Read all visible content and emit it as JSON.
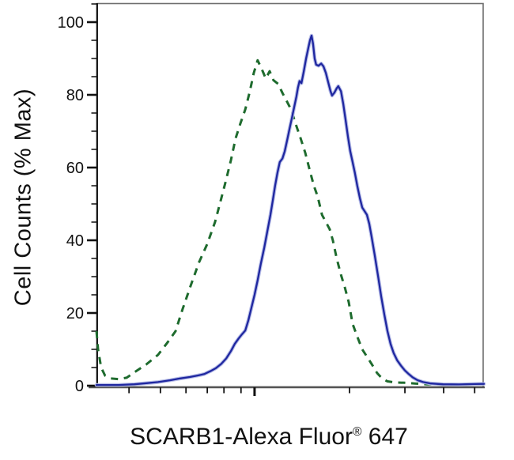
{
  "figure": {
    "background_color": "#ffffff",
    "ylabel": "Cell Counts (% Max)",
    "xlabel_main": "SCARB1-Alexa Fluor",
    "xlabel_reg": "®",
    "xlabel_suffix": " 647"
  },
  "chart_data": {
    "type": "line",
    "subtype": "flow-cytometry-histogram-overlay",
    "title": "",
    "xlabel": "SCARB1-Alexa Fluor® 647",
    "ylabel": "Cell Counts (% Max)",
    "ylim": [
      0,
      100
    ],
    "y_major_ticks": [
      0,
      20,
      40,
      60,
      80,
      100
    ],
    "y_minor_tick_step": 5,
    "grid": false,
    "legend": "none",
    "x_axis": {
      "scale": "logarithmic",
      "tick_labels_shown": false,
      "ticks": [
        {
          "pos": 0.084,
          "major": false
        },
        {
          "pos": 0.165,
          "major": false
        },
        {
          "pos": 0.231,
          "major": false
        },
        {
          "pos": 0.286,
          "major": false
        },
        {
          "pos": 0.329,
          "major": false
        },
        {
          "pos": 0.373,
          "major": false
        },
        {
          "pos": 0.408,
          "major": true
        },
        {
          "pos": 0.653,
          "major": false
        },
        {
          "pos": 0.796,
          "major": false
        },
        {
          "pos": 0.896,
          "major": false
        },
        {
          "pos": 0.976,
          "major": false
        }
      ]
    },
    "x_unit": "fraction of plot width (log-scaled axis, unlabeled)",
    "y_unit": "% of max cell counts",
    "colors": {
      "green_dashed": "#1e6b2e",
      "blue_core": "#1f27a0",
      "blue_halo": "#b3b9e6",
      "frame": "#6e6e6e",
      "axis": "#111111"
    },
    "series": [
      {
        "name": "green-dashed-histogram",
        "style": "dashed",
        "color": "#1e6b2e",
        "points": [
          [
            0.0,
            15
          ],
          [
            0.004,
            10
          ],
          [
            0.012,
            5
          ],
          [
            0.022,
            2.8
          ],
          [
            0.037,
            2
          ],
          [
            0.057,
            1.8
          ],
          [
            0.078,
            2.2
          ],
          [
            0.098,
            3.7
          ],
          [
            0.129,
            5.9
          ],
          [
            0.159,
            8.5
          ],
          [
            0.184,
            12
          ],
          [
            0.204,
            15
          ],
          [
            0.222,
            21
          ],
          [
            0.243,
            27.5
          ],
          [
            0.265,
            34
          ],
          [
            0.286,
            39
          ],
          [
            0.306,
            45
          ],
          [
            0.322,
            51.5
          ],
          [
            0.333,
            56
          ],
          [
            0.347,
            62
          ],
          [
            0.359,
            68
          ],
          [
            0.371,
            72
          ],
          [
            0.384,
            76
          ],
          [
            0.396,
            81
          ],
          [
            0.406,
            86
          ],
          [
            0.416,
            89.5
          ],
          [
            0.427,
            87
          ],
          [
            0.437,
            84.5
          ],
          [
            0.447,
            86.5
          ],
          [
            0.457,
            84
          ],
          [
            0.469,
            83
          ],
          [
            0.48,
            80.5
          ],
          [
            0.49,
            78.5
          ],
          [
            0.502,
            76
          ],
          [
            0.514,
            72
          ],
          [
            0.527,
            68
          ],
          [
            0.539,
            64
          ],
          [
            0.551,
            59
          ],
          [
            0.561,
            55
          ],
          [
            0.571,
            52
          ],
          [
            0.582,
            47
          ],
          [
            0.592,
            45
          ],
          [
            0.602,
            43
          ],
          [
            0.61,
            40
          ],
          [
            0.62,
            35
          ],
          [
            0.631,
            30.5
          ],
          [
            0.641,
            27
          ],
          [
            0.651,
            23
          ],
          [
            0.661,
            17
          ],
          [
            0.673,
            13.5
          ],
          [
            0.686,
            10
          ],
          [
            0.698,
            8
          ],
          [
            0.71,
            6
          ],
          [
            0.724,
            3.5
          ],
          [
            0.737,
            2
          ],
          [
            0.751,
            1.2
          ],
          [
            0.771,
            0.9
          ],
          [
            0.796,
            0.8
          ],
          [
            0.822,
            0.6
          ],
          [
            0.853,
            0.4
          ],
          [
            0.894,
            0.3
          ],
          [
            0.935,
            0.4
          ],
          [
            0.976,
            0.5
          ],
          [
            1.0,
            0.5
          ]
        ]
      },
      {
        "name": "blue-solid-histogram",
        "style": "solid",
        "color": "#1f27a0",
        "points": [
          [
            0.0,
            0.2
          ],
          [
            0.057,
            0.2
          ],
          [
            0.098,
            0.4
          ],
          [
            0.129,
            0.7
          ],
          [
            0.159,
            1
          ],
          [
            0.19,
            1.5
          ],
          [
            0.216,
            2
          ],
          [
            0.241,
            2.4
          ],
          [
            0.261,
            2.8
          ],
          [
            0.278,
            3.2
          ],
          [
            0.294,
            4
          ],
          [
            0.308,
            4.8
          ],
          [
            0.322,
            6
          ],
          [
            0.335,
            7.5
          ],
          [
            0.347,
            9.5
          ],
          [
            0.357,
            11.5
          ],
          [
            0.367,
            13
          ],
          [
            0.376,
            14.2
          ],
          [
            0.384,
            15.2
          ],
          [
            0.392,
            18
          ],
          [
            0.4,
            21.5
          ],
          [
            0.408,
            25
          ],
          [
            0.416,
            29
          ],
          [
            0.424,
            33.5
          ],
          [
            0.433,
            38
          ],
          [
            0.441,
            42.5
          ],
          [
            0.449,
            47
          ],
          [
            0.455,
            51
          ],
          [
            0.461,
            55
          ],
          [
            0.467,
            58.5
          ],
          [
            0.473,
            61.5
          ],
          [
            0.48,
            62.5
          ],
          [
            0.486,
            64.5
          ],
          [
            0.492,
            67.5
          ],
          [
            0.498,
            70.5
          ],
          [
            0.504,
            73.5
          ],
          [
            0.51,
            76.5
          ],
          [
            0.516,
            79.5
          ],
          [
            0.52,
            82
          ],
          [
            0.524,
            83.8
          ],
          [
            0.529,
            83.2
          ],
          [
            0.535,
            86.5
          ],
          [
            0.541,
            90
          ],
          [
            0.547,
            93
          ],
          [
            0.551,
            95
          ],
          [
            0.555,
            96.3
          ],
          [
            0.559,
            94
          ],
          [
            0.563,
            90
          ],
          [
            0.567,
            88.3
          ],
          [
            0.573,
            88
          ],
          [
            0.58,
            88.6
          ],
          [
            0.586,
            87.8
          ],
          [
            0.592,
            86
          ],
          [
            0.598,
            83.5
          ],
          [
            0.604,
            81
          ],
          [
            0.608,
            79.8
          ],
          [
            0.614,
            80.6
          ],
          [
            0.62,
            81.8
          ],
          [
            0.624,
            82.4
          ],
          [
            0.631,
            81
          ],
          [
            0.637,
            77.5
          ],
          [
            0.643,
            73
          ],
          [
            0.649,
            68.5
          ],
          [
            0.655,
            64.5
          ],
          [
            0.661,
            61.5
          ],
          [
            0.667,
            58.5
          ],
          [
            0.673,
            55
          ],
          [
            0.68,
            51.5
          ],
          [
            0.686,
            49
          ],
          [
            0.692,
            48
          ],
          [
            0.698,
            47
          ],
          [
            0.704,
            44.5
          ],
          [
            0.71,
            41
          ],
          [
            0.718,
            36
          ],
          [
            0.727,
            30
          ],
          [
            0.735,
            24.5
          ],
          [
            0.743,
            19.5
          ],
          [
            0.751,
            15
          ],
          [
            0.759,
            11.5
          ],
          [
            0.767,
            9
          ],
          [
            0.776,
            7
          ],
          [
            0.786,
            5.5
          ],
          [
            0.796,
            4.2
          ],
          [
            0.806,
            3.2
          ],
          [
            0.816,
            2.3
          ],
          [
            0.829,
            1.5
          ],
          [
            0.843,
            1
          ],
          [
            0.863,
            0.6
          ],
          [
            0.894,
            0.4
          ],
          [
            0.935,
            0.35
          ],
          [
            0.976,
            0.45
          ],
          [
            1.0,
            0.5
          ]
        ]
      }
    ]
  }
}
